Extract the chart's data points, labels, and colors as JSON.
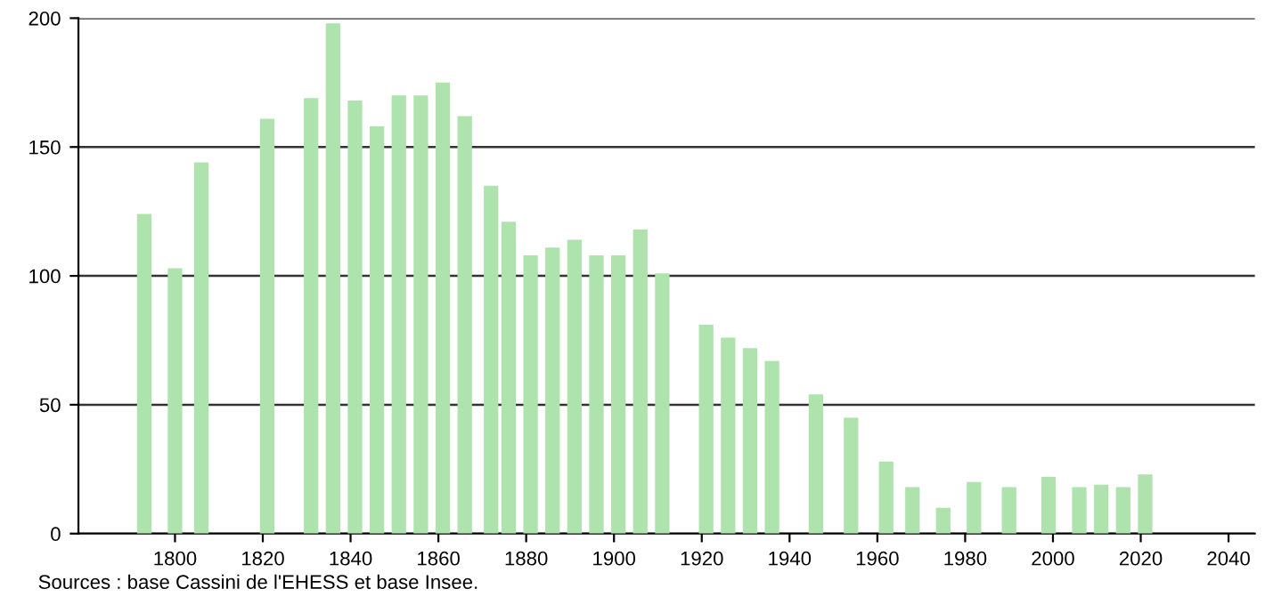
{
  "chart_data": {
    "type": "bar",
    "x": [
      1793,
      1800,
      1806,
      1821,
      1831,
      1836,
      1841,
      1846,
      1851,
      1856,
      1861,
      1866,
      1872,
      1876,
      1881,
      1886,
      1891,
      1896,
      1901,
      1906,
      1911,
      1921,
      1926,
      1931,
      1936,
      1946,
      1954,
      1962,
      1968,
      1975,
      1982,
      1990,
      1999,
      2006,
      2011,
      2016,
      2021
    ],
    "values": [
      124,
      103,
      144,
      161,
      169,
      198,
      168,
      158,
      170,
      170,
      175,
      162,
      135,
      121,
      108,
      111,
      114,
      108,
      108,
      118,
      101,
      81,
      76,
      72,
      67,
      54,
      45,
      28,
      18,
      10,
      20,
      18,
      22,
      18,
      19,
      18,
      23
    ],
    "color": "#aee3ae",
    "xlim": [
      1778,
      2046
    ],
    "xticks": [
      1800,
      1820,
      1840,
      1860,
      1880,
      1900,
      1920,
      1940,
      1960,
      1980,
      2000,
      2020,
      2040
    ],
    "ylim": [
      0,
      200
    ],
    "yticks": [
      0,
      50,
      100,
      150,
      200
    ],
    "grid": "y",
    "annotations": [
      "Sources : base Cassini de l'EHESS et base Insee."
    ]
  }
}
